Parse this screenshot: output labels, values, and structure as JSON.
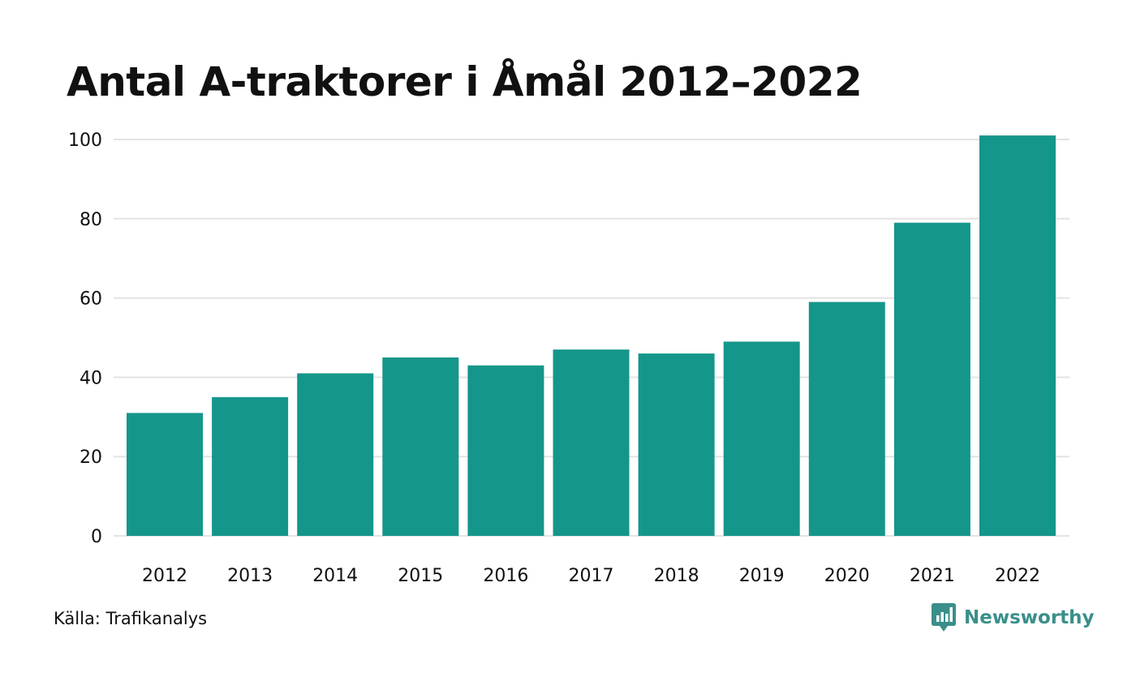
{
  "title": "Antal A-traktorer i Åmål 2012–2022",
  "source": "Källa: Trafikanalys",
  "brand": {
    "name": "Newsworthy",
    "icon": "newsworthy-logo-icon",
    "color": "#3a8f8a"
  },
  "colors": {
    "bar": "#15968a",
    "grid": "#e3e3e3",
    "text": "#111111"
  },
  "chart_data": {
    "type": "bar",
    "title": "Antal A-traktorer i Åmål 2012–2022",
    "xlabel": "",
    "ylabel": "",
    "categories": [
      "2012",
      "2013",
      "2014",
      "2015",
      "2016",
      "2017",
      "2018",
      "2019",
      "2020",
      "2021",
      "2022"
    ],
    "values": [
      31,
      35,
      41,
      45,
      43,
      47,
      46,
      49,
      59,
      79,
      101
    ],
    "ylim": [
      0,
      100
    ],
    "yticks": [
      0,
      20,
      40,
      60,
      80,
      100
    ],
    "grid": true,
    "legend": "none"
  }
}
